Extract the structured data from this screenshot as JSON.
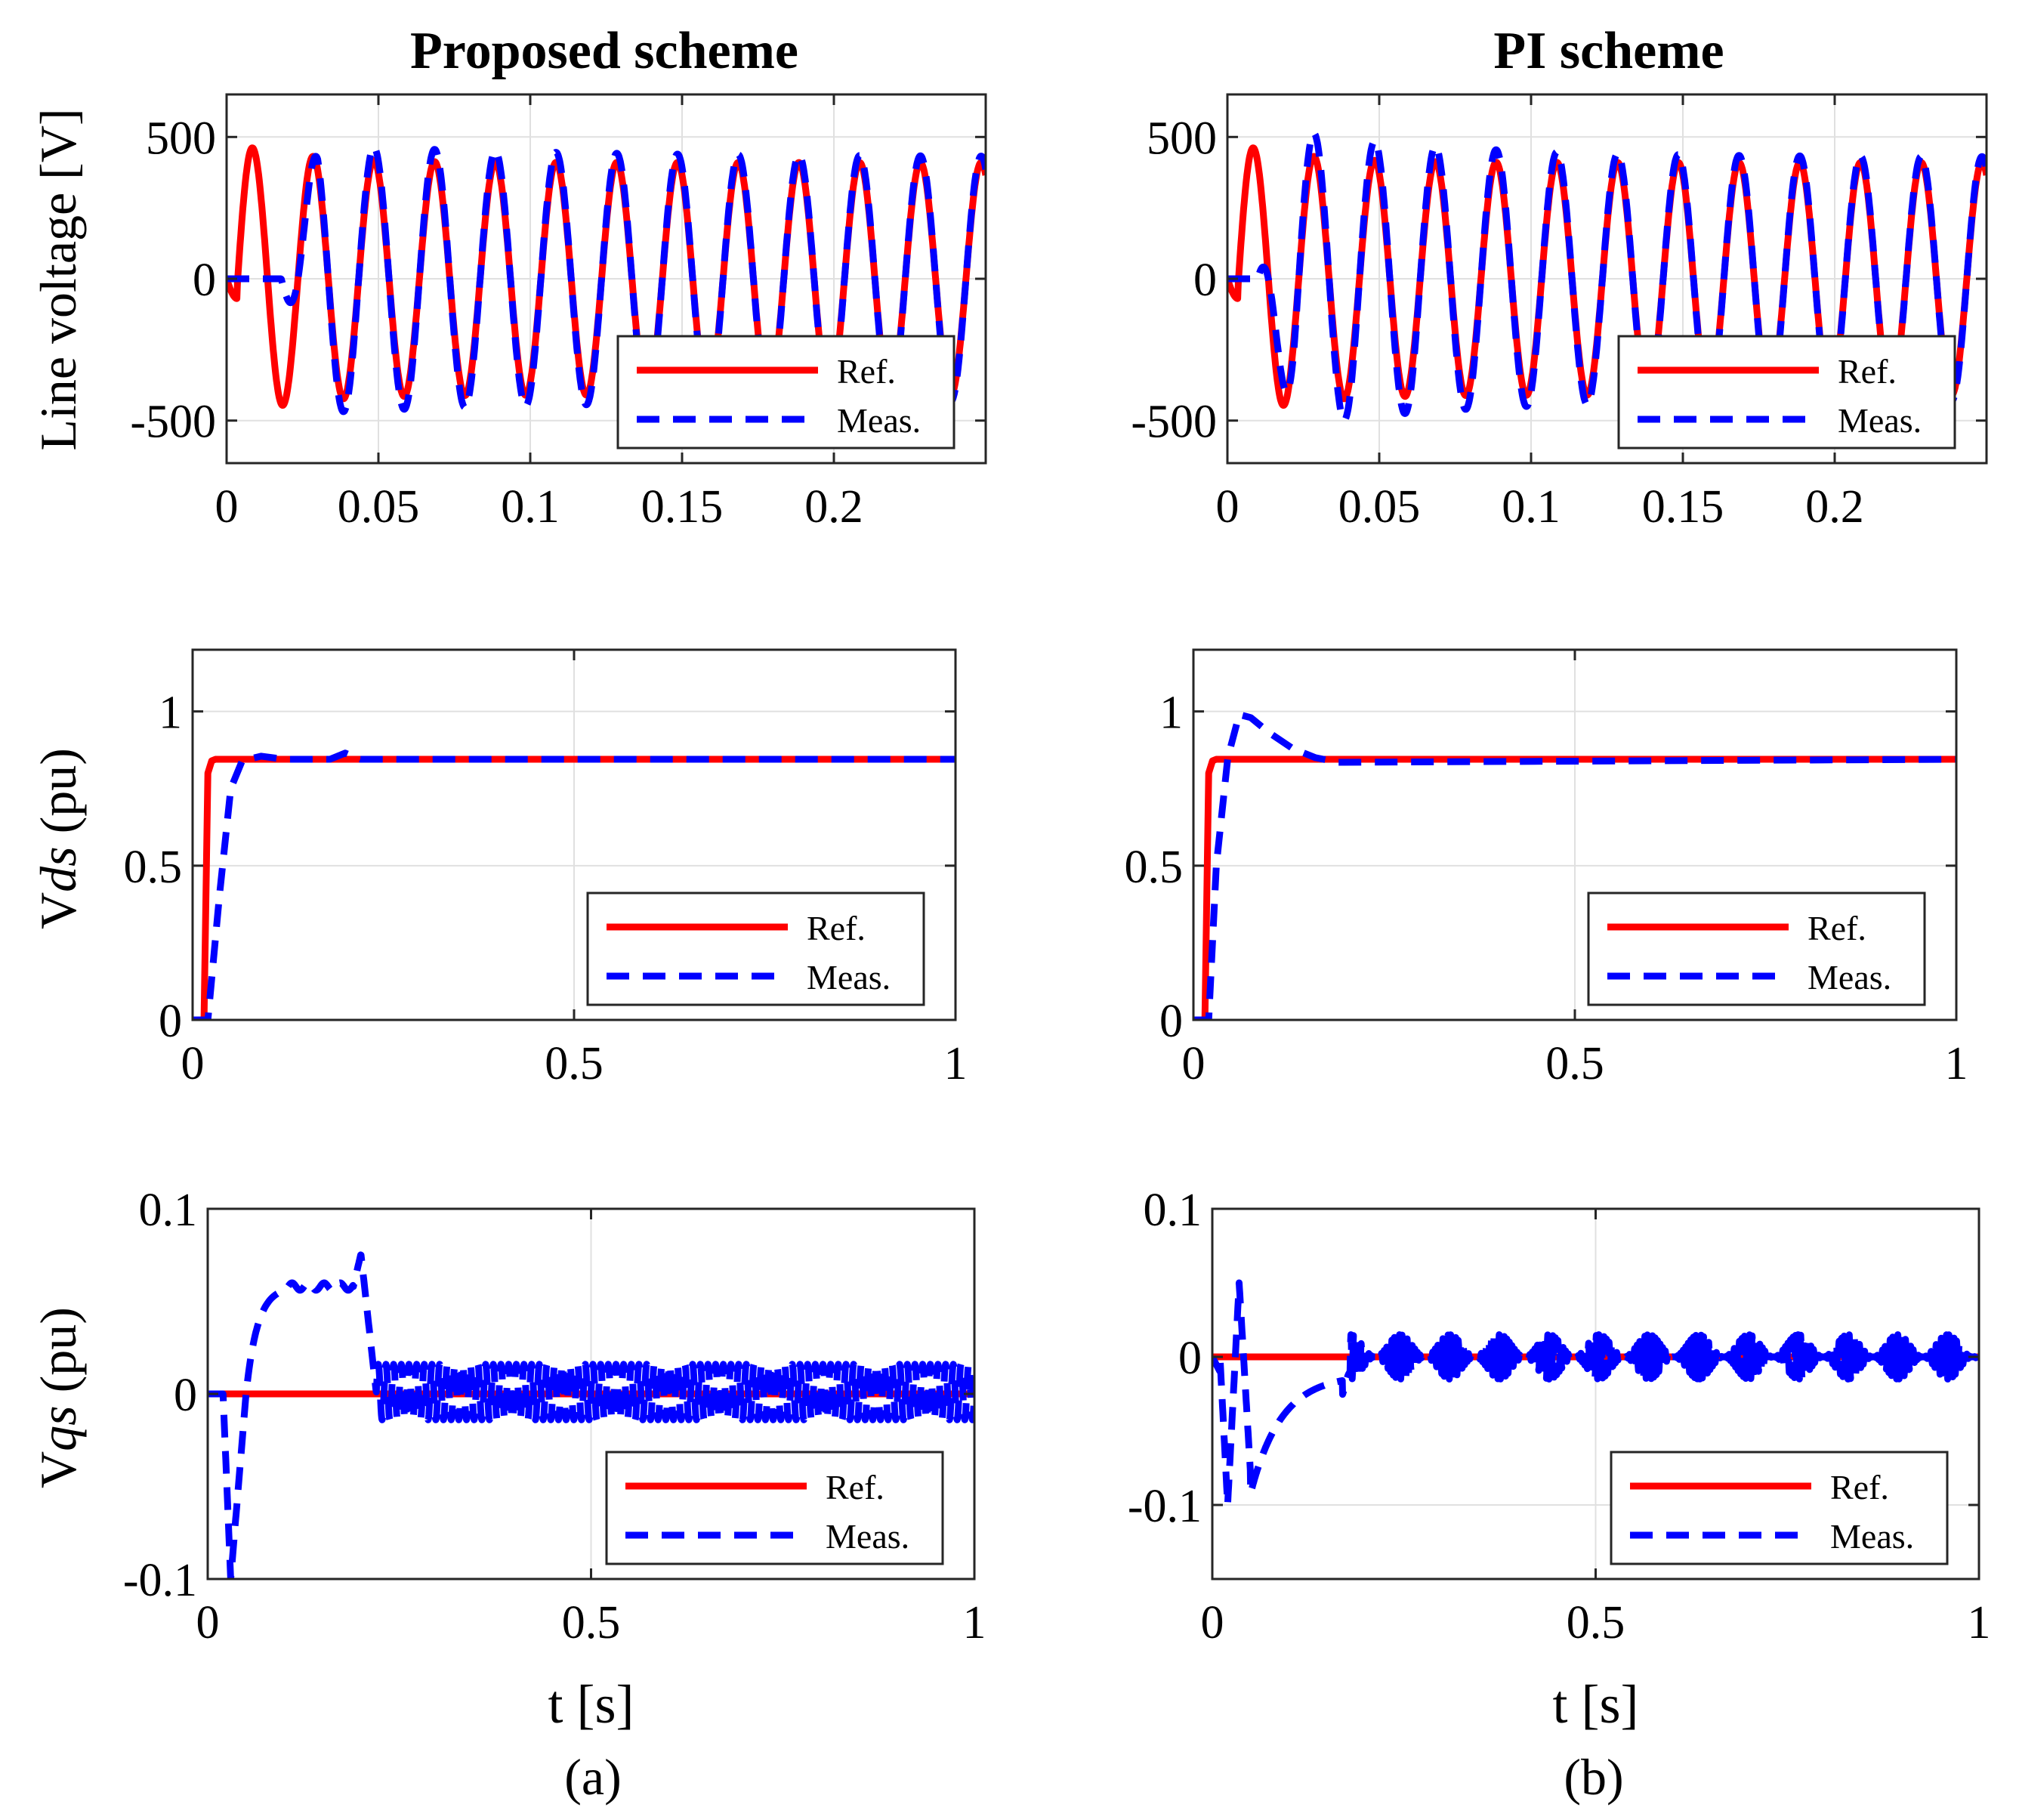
{
  "figure": {
    "col_titles": [
      "Proposed scheme",
      "PI scheme"
    ],
    "sub_labels": [
      "(a)",
      "(b)"
    ]
  },
  "chart_data": [
    {
      "id": "a-line-voltage",
      "type": "line",
      "column": "a",
      "title": "Proposed scheme",
      "xlabel": "",
      "ylabel": "Line voltage [V]",
      "xlim": [
        0,
        0.25
      ],
      "ylim": [
        -650,
        650
      ],
      "xticks": [
        0,
        0.05,
        0.1,
        0.15,
        0.2
      ],
      "xtick_labels": [
        "0",
        "0.05",
        "0.1",
        "0.15",
        "0.2"
      ],
      "yticks": [
        -500,
        0,
        500
      ],
      "ytick_labels": [
        "-500",
        "0",
        "500"
      ],
      "legend": [
        "Ref.",
        "Meas."
      ],
      "legend_location": "lower-right",
      "grid": true,
      "series": [
        {
          "name": "Ref.",
          "style": "solid",
          "color": "#ff0000",
          "fn": "sine",
          "f": 50,
          "amp": 410,
          "startup": true
        },
        {
          "name": "Meas.",
          "style": "dashed",
          "color": "#0000ff",
          "fn": "sine",
          "f": 50,
          "amp": 430,
          "delay": 0.018,
          "overshoot": true
        }
      ]
    },
    {
      "id": "b-line-voltage",
      "type": "line",
      "column": "b",
      "title": "PI scheme",
      "xlabel": "",
      "ylabel": "",
      "xlim": [
        0,
        0.25
      ],
      "ylim": [
        -650,
        650
      ],
      "xticks": [
        0,
        0.05,
        0.1,
        0.15,
        0.2
      ],
      "xtick_labels": [
        "0",
        "0.05",
        "0.1",
        "0.15",
        "0.2"
      ],
      "yticks": [
        -500,
        0,
        500
      ],
      "ytick_labels": [
        "-500",
        "0",
        "500"
      ],
      "legend": [
        "Ref.",
        "Meas."
      ],
      "legend_location": "lower-right",
      "grid": true,
      "series": [
        {
          "name": "Ref.",
          "style": "solid",
          "color": "#ff0000",
          "fn": "sine",
          "f": 50,
          "amp": 410,
          "startup": true
        },
        {
          "name": "Meas.",
          "style": "dashed",
          "color": "#0000ff",
          "fn": "sine",
          "f": 50,
          "amp": 430,
          "delay": 0.01,
          "overshoot": true,
          "big_overshoot": true
        }
      ]
    },
    {
      "id": "a-vds",
      "type": "line",
      "column": "a",
      "xlabel": "",
      "ylabel": "Vds (pu)",
      "xlim": [
        0,
        1
      ],
      "ylim": [
        0,
        1.2
      ],
      "xticks": [
        0,
        0.5,
        1
      ],
      "xtick_labels": [
        "0",
        "0.5",
        "1"
      ],
      "yticks": [
        0,
        0.5,
        1
      ],
      "ytick_labels": [
        "0",
        "0.5",
        "1"
      ],
      "legend": [
        "Ref.",
        "Meas."
      ],
      "legend_location": "lower-right",
      "grid": true,
      "series": [
        {
          "name": "Ref.",
          "style": "solid",
          "color": "#ff0000",
          "x": [
            0,
            0.015,
            0.02,
            0.025,
            0.03,
            1
          ],
          "y": [
            0,
            0,
            0.8,
            0.84,
            0.845,
            0.845
          ]
        },
        {
          "name": "Meas.",
          "style": "dashed",
          "color": "#0000ff",
          "x": [
            0,
            0.02,
            0.035,
            0.05,
            0.065,
            0.09,
            0.12,
            0.18,
            0.2,
            0.22,
            1
          ],
          "y": [
            0,
            0,
            0.4,
            0.75,
            0.84,
            0.855,
            0.845,
            0.845,
            0.865,
            0.845,
            0.845
          ]
        }
      ]
    },
    {
      "id": "b-vds",
      "type": "line",
      "column": "b",
      "xlabel": "",
      "ylabel": "",
      "xlim": [
        0,
        1
      ],
      "ylim": [
        0,
        1.2
      ],
      "xticks": [
        0,
        0.5,
        1
      ],
      "xtick_labels": [
        "0",
        "0.5",
        "1"
      ],
      "yticks": [
        0,
        0.5,
        1
      ],
      "ytick_labels": [
        "0",
        "0.5",
        "1"
      ],
      "legend": [
        "Ref.",
        "Meas."
      ],
      "legend_location": "lower-right",
      "grid": true,
      "series": [
        {
          "name": "Ref.",
          "style": "solid",
          "color": "#ff0000",
          "x": [
            0,
            0.015,
            0.02,
            0.025,
            0.03,
            1
          ],
          "y": [
            0,
            0,
            0.8,
            0.84,
            0.845,
            0.845
          ]
        },
        {
          "name": "Meas.",
          "style": "dashed",
          "color": "#0000ff",
          "x": [
            0,
            0.02,
            0.03,
            0.045,
            0.06,
            0.075,
            0.1,
            0.13,
            0.16,
            0.19,
            1
          ],
          "y": [
            0,
            0,
            0.5,
            0.85,
            0.99,
            0.98,
            0.93,
            0.88,
            0.85,
            0.835,
            0.845
          ]
        }
      ]
    },
    {
      "id": "a-vqs",
      "type": "line",
      "column": "a",
      "xlabel": "t  [s]",
      "ylabel": "Vqs (pu)",
      "xlim": [
        0,
        1
      ],
      "ylim": [
        -0.1,
        0.1
      ],
      "xticks": [
        0,
        0.5,
        1
      ],
      "xtick_labels": [
        "0",
        "0.5",
        "1"
      ],
      "yticks": [
        -0.1,
        0,
        0.1
      ],
      "ytick_labels": [
        "-0.1",
        "0",
        "0.1"
      ],
      "legend": [
        "Ref.",
        "Meas."
      ],
      "legend_location": "lower-right",
      "grid": true,
      "series": [
        {
          "name": "Ref.",
          "style": "solid",
          "color": "#ff0000",
          "x": [
            0,
            1
          ],
          "y": [
            0,
            0
          ]
        },
        {
          "name": "Meas.",
          "style": "dashed",
          "color": "#0000ff",
          "fn": "vqs_a"
        }
      ]
    },
    {
      "id": "b-vqs",
      "type": "line",
      "column": "b",
      "xlabel": "t  [s]",
      "ylabel": "",
      "xlim": [
        0,
        1
      ],
      "ylim": [
        -0.15,
        0.1
      ],
      "xticks": [
        0,
        0.5,
        1
      ],
      "xtick_labels": [
        "0",
        "0.5",
        "1"
      ],
      "yticks": [
        -0.1,
        0,
        0.1
      ],
      "ytick_labels": [
        "-0.1",
        "0",
        "0.1"
      ],
      "legend": [
        "Ref.",
        "Meas."
      ],
      "legend_location": "lower-right",
      "grid": true,
      "series": [
        {
          "name": "Ref.",
          "style": "solid",
          "color": "#ff0000",
          "x": [
            0,
            1
          ],
          "y": [
            0,
            0
          ]
        },
        {
          "name": "Meas.",
          "style": "dashed",
          "color": "#0000ff",
          "fn": "vqs_b"
        }
      ]
    }
  ]
}
